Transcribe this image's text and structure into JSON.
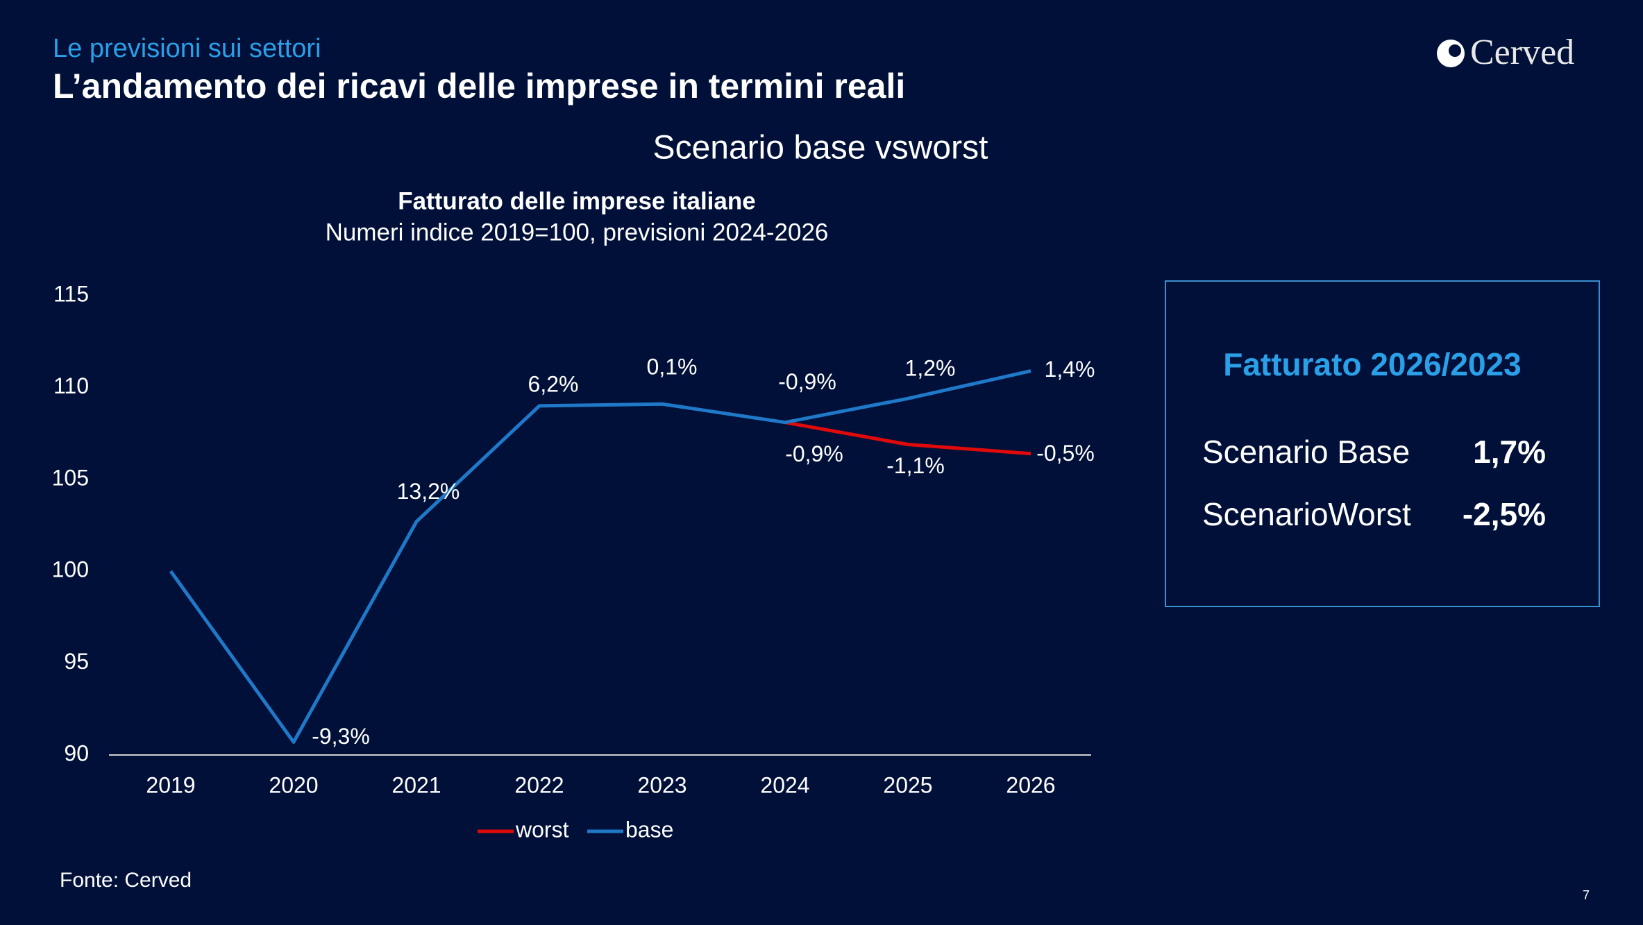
{
  "header": {
    "kicker": "Le previsioni sui settori",
    "title": "L’andamento dei ricavi delle imprese in termini reali",
    "logo": "Cerved",
    "section_title": "Scenario base vsworst"
  },
  "chart_data": {
    "type": "line",
    "title": "Fatturato delle imprese italiane",
    "subtitle": "Numeri indice 2019=100, previsioni 2024-2026",
    "categories": [
      "2019",
      "2020",
      "2021",
      "2022",
      "2023",
      "2024",
      "2025",
      "2026"
    ],
    "series": [
      {
        "name": "worst",
        "color": "#e00a0a",
        "values": [
          null,
          null,
          null,
          null,
          null,
          108.1,
          106.9,
          106.4
        ],
        "change_labels": [
          null,
          null,
          null,
          null,
          null,
          "-0,9%",
          "-1,1%",
          "-0,5%"
        ]
      },
      {
        "name": "base",
        "color": "#1f78c8",
        "values": [
          100,
          90.7,
          102.7,
          109.0,
          109.1,
          108.1,
          109.4,
          110.9
        ],
        "change_labels": [
          null,
          "-9,3%",
          "13,2%",
          "6,2%",
          "0,1%",
          "-0,9%",
          "1,2%",
          "1,4%"
        ]
      }
    ],
    "ylim": [
      90,
      115
    ],
    "yticks": [
      90,
      95,
      100,
      105,
      110,
      115
    ],
    "grid": false,
    "legend": "bottom"
  },
  "summary_box": {
    "title": "Fatturato 2026/2023",
    "rows": [
      [
        "Scenario Base",
        "1,7%"
      ],
      [
        "ScenarioWorst",
        "-2,5%"
      ]
    ]
  },
  "footer": {
    "source": "Fonte: Cerved",
    "page": "7"
  }
}
